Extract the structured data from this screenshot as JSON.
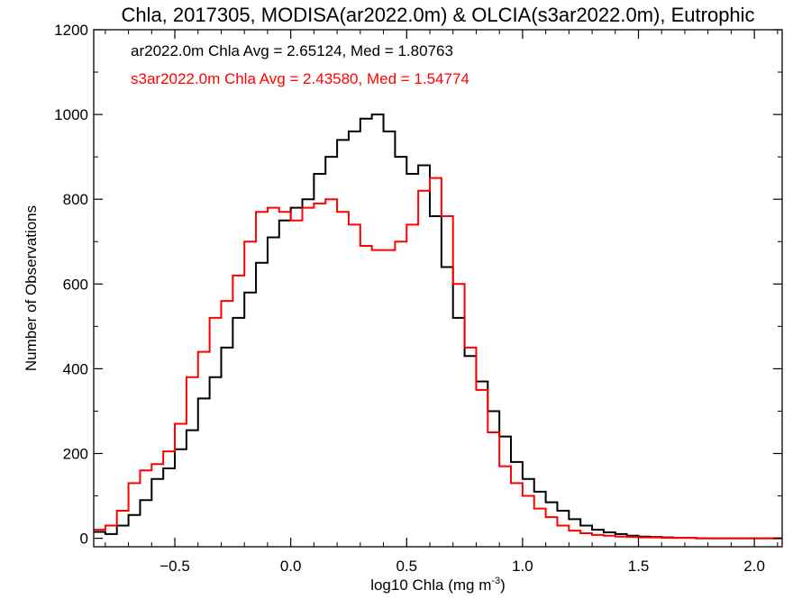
{
  "chart_data": {
    "type": "line",
    "title": "Chla, 2017305, MODISA(ar2022.0m) & OLCIA(s3ar2022.0m), Eutrophic",
    "xlabel": "log10 Chla (mg m",
    "xlabel_sup": "-3",
    "xlabel_close": ")",
    "ylabel": "Number of Observations",
    "xlim": [
      -0.85,
      2.12
    ],
    "ylim": [
      -20,
      1200
    ],
    "x_ticks": [
      -0.5,
      0.0,
      0.5,
      1.0,
      1.5,
      2.0
    ],
    "x_tick_labels": [
      "−0.5",
      "0.0",
      "0.5",
      "1.0",
      "1.5",
      "2.0"
    ],
    "y_ticks": [
      0,
      200,
      400,
      600,
      800,
      1000,
      1200
    ],
    "y_tick_labels": [
      "0",
      "200",
      "400",
      "600",
      "800",
      "1000",
      "1200"
    ],
    "grid": false,
    "step": true,
    "series": [
      {
        "name": "ar2022.0m",
        "color": "#000000",
        "x": [
          -0.85,
          -0.8,
          -0.75,
          -0.7,
          -0.65,
          -0.6,
          -0.55,
          -0.5,
          -0.45,
          -0.4,
          -0.35,
          -0.3,
          -0.25,
          -0.2,
          -0.15,
          -0.1,
          -0.05,
          0.0,
          0.05,
          0.1,
          0.15,
          0.2,
          0.25,
          0.3,
          0.35,
          0.4,
          0.45,
          0.5,
          0.55,
          0.6,
          0.65,
          0.7,
          0.75,
          0.8,
          0.85,
          0.9,
          0.95,
          1.0,
          1.05,
          1.1,
          1.15,
          1.2,
          1.25,
          1.3,
          1.35,
          1.4,
          1.45,
          1.5,
          1.55,
          1.6,
          1.65,
          1.7,
          1.75,
          1.8,
          1.85,
          1.9,
          1.95,
          2.0,
          2.05,
          2.1
        ],
        "values": [
          15,
          10,
          30,
          55,
          90,
          140,
          165,
          210,
          255,
          330,
          380,
          450,
          520,
          580,
          650,
          710,
          750,
          780,
          800,
          860,
          900,
          940,
          960,
          990,
          1000,
          960,
          900,
          860,
          880,
          760,
          640,
          520,
          430,
          370,
          300,
          240,
          180,
          140,
          110,
          85,
          65,
          45,
          30,
          20,
          14,
          10,
          6,
          4,
          3,
          2,
          1,
          1,
          0,
          0,
          0,
          0,
          0,
          0,
          0,
          0
        ]
      },
      {
        "name": "s3ar2022.0m",
        "color": "#ff0000",
        "x": [
          -0.85,
          -0.8,
          -0.75,
          -0.7,
          -0.65,
          -0.6,
          -0.55,
          -0.5,
          -0.45,
          -0.4,
          -0.35,
          -0.3,
          -0.25,
          -0.2,
          -0.15,
          -0.1,
          -0.05,
          0.0,
          0.05,
          0.1,
          0.15,
          0.2,
          0.25,
          0.3,
          0.35,
          0.4,
          0.45,
          0.5,
          0.55,
          0.6,
          0.65,
          0.7,
          0.75,
          0.8,
          0.85,
          0.9,
          0.95,
          1.0,
          1.05,
          1.1,
          1.15,
          1.2,
          1.25,
          1.3,
          1.35,
          1.4,
          1.45,
          1.5,
          1.55,
          1.6,
          1.65,
          1.7,
          1.75,
          1.8,
          1.85,
          1.9,
          1.95,
          2.0,
          2.05,
          2.1
        ],
        "values": [
          20,
          30,
          65,
          130,
          160,
          175,
          205,
          270,
          380,
          440,
          520,
          560,
          620,
          700,
          770,
          780,
          770,
          750,
          780,
          790,
          800,
          770,
          740,
          690,
          680,
          680,
          700,
          740,
          820,
          850,
          760,
          600,
          450,
          350,
          250,
          170,
          130,
          100,
          70,
          50,
          30,
          18,
          12,
          8,
          6,
          4,
          3,
          2,
          2,
          1,
          1,
          1,
          0,
          0,
          0,
          0,
          0,
          0,
          0,
          0
        ]
      }
    ],
    "annotations": [
      {
        "text": "ar2022.0m Chla Avg = 2.65124, Med = 1.80763",
        "color": "#000000"
      },
      {
        "text": "s3ar2022.0m Chla Avg = 2.43580, Med = 1.54774",
        "color": "#ff0000"
      }
    ]
  }
}
